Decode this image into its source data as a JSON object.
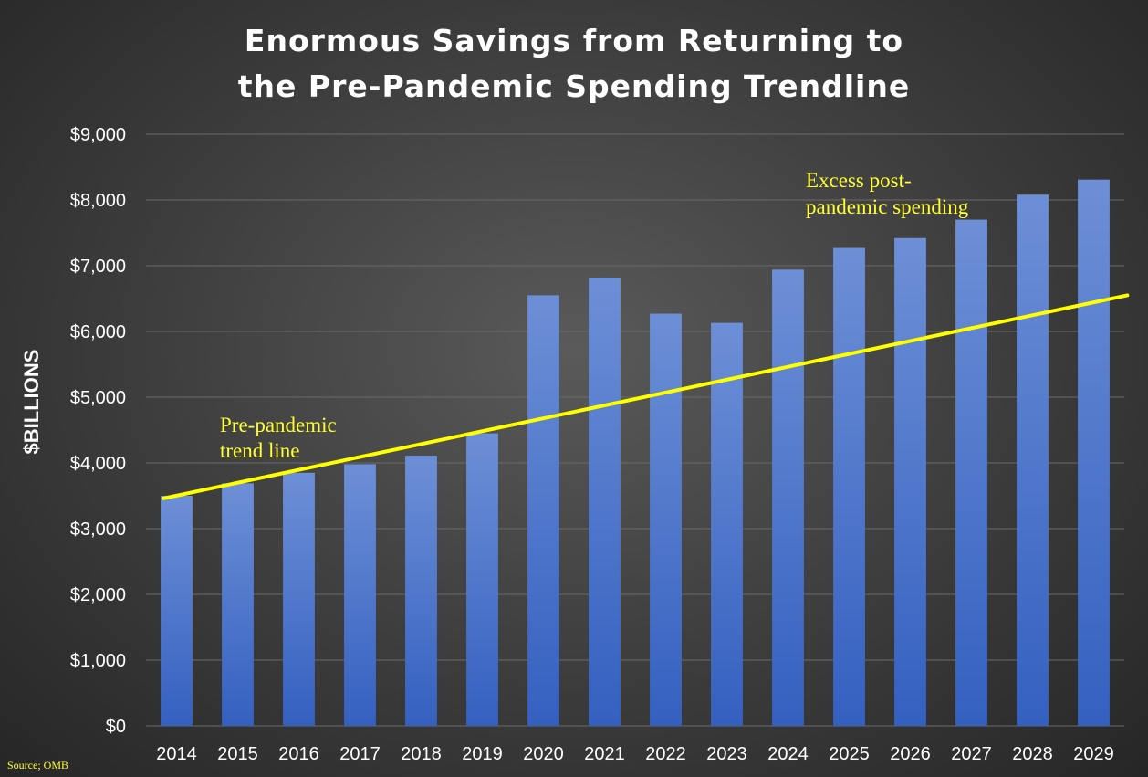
{
  "chart_data": {
    "type": "bar",
    "title_lines": [
      "Enormous Savings from Returning to",
      "the Pre-Pandemic Spending Trendline"
    ],
    "ylabel": "$BILLIONS",
    "xlabel": "",
    "ylim": [
      0,
      9000
    ],
    "yticks": [
      0,
      1000,
      2000,
      3000,
      4000,
      5000,
      6000,
      7000,
      8000,
      9000
    ],
    "ytick_labels": [
      "$0",
      "$1,000",
      "$2,000",
      "$3,000",
      "$4,000",
      "$5,000",
      "$6,000",
      "$7,000",
      "$8,000",
      "$9,000"
    ],
    "grid": true,
    "categories": [
      "2014",
      "2015",
      "2016",
      "2017",
      "2018",
      "2019",
      "2020",
      "2021",
      "2022",
      "2023",
      "2024",
      "2025",
      "2026",
      "2027",
      "2028",
      "2029"
    ],
    "values": [
      3500,
      3690,
      3850,
      3980,
      4110,
      4450,
      6550,
      6820,
      6270,
      6130,
      6940,
      7270,
      7420,
      7700,
      8080,
      8310
    ],
    "trendline": {
      "start": {
        "x": "2014",
        "y": 3460
      },
      "end": {
        "x": "2029",
        "y": 6490
      }
    },
    "bar_color_top": "#6d8fd6",
    "bar_color_bottom": "#3460c0",
    "trend_color": "#ffff00",
    "annotations": [
      {
        "lines": [
          "Pre-pandemic",
          "trend line"
        ]
      },
      {
        "lines": [
          "Excess post-",
          "pandemic spending"
        ]
      }
    ],
    "source": "Source; OMB"
  }
}
